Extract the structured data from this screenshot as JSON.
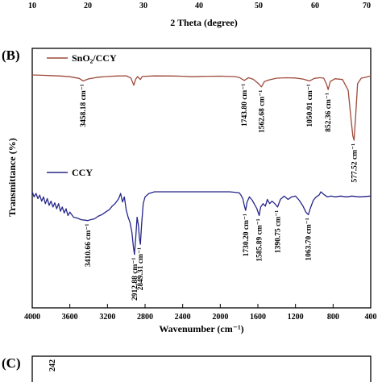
{
  "top_panel": {
    "x_ticks": [
      "10",
      "20",
      "30",
      "40",
      "50",
      "60",
      "70"
    ],
    "xlabel": "2 Theta (degree)"
  },
  "chart_data": {
    "type": "line",
    "panel": "(B)",
    "title": "",
    "xlabel": "Wavenumber (cm⁻¹)",
    "ylabel": "Transmittance (%)",
    "xlim": [
      4000,
      400
    ],
    "x_ticks": [
      "4000",
      "3600",
      "3200",
      "2800",
      "2400",
      "2000",
      "1600",
      "1200",
      "800",
      "400"
    ],
    "grid": false,
    "legend_position": "upper-left of each trace",
    "series": [
      {
        "name": "SnO₂/CCY",
        "color": "#9e4a3c",
        "points": [
          [
            4000,
            0.0
          ],
          [
            3900,
            0.3
          ],
          [
            3800,
            0.6
          ],
          [
            3700,
            1.0
          ],
          [
            3600,
            1.6
          ],
          [
            3500,
            3.2
          ],
          [
            3458.18,
            5.5
          ],
          [
            3400,
            3.6
          ],
          [
            3300,
            2.1
          ],
          [
            3200,
            1.4
          ],
          [
            3100,
            1.0
          ],
          [
            3000,
            0.8
          ],
          [
            2950,
            2.8
          ],
          [
            2920,
            9.5
          ],
          [
            2900,
            4.0
          ],
          [
            2880,
            1.5
          ],
          [
            2850,
            4.2
          ],
          [
            2830,
            1.4
          ],
          [
            2700,
            0.9
          ],
          [
            2500,
            1.0
          ],
          [
            2400,
            1.2
          ],
          [
            2300,
            1.6
          ],
          [
            2200,
            1.3
          ],
          [
            2100,
            1.2
          ],
          [
            2000,
            1.1
          ],
          [
            1850,
            1.5
          ],
          [
            1800,
            2.2
          ],
          [
            1743.8,
            5.0
          ],
          [
            1700,
            2.5
          ],
          [
            1650,
            4.0
          ],
          [
            1600,
            7.5
          ],
          [
            1562.68,
            11.0
          ],
          [
            1530,
            6.0
          ],
          [
            1480,
            4.5
          ],
          [
            1400,
            3.0
          ],
          [
            1300,
            2.6
          ],
          [
            1200,
            2.8
          ],
          [
            1120,
            3.8
          ],
          [
            1050.91,
            5.5
          ],
          [
            1000,
            3.2
          ],
          [
            940,
            2.5
          ],
          [
            900,
            3.0
          ],
          [
            870,
            8.5
          ],
          [
            852.36,
            13.5
          ],
          [
            830,
            6.0
          ],
          [
            780,
            3.5
          ],
          [
            700,
            4.2
          ],
          [
            640,
            14.0
          ],
          [
            610,
            40.0
          ],
          [
            590,
            56.0
          ],
          [
            577.52,
            60.0
          ],
          [
            560,
            38.0
          ],
          [
            540,
            8.0
          ],
          [
            500,
            3.0
          ],
          [
            450,
            2.0
          ],
          [
            400,
            1.0
          ]
        ]
      },
      {
        "name": "CCY",
        "color": "#26268a",
        "points": [
          [
            4000,
            0.0
          ],
          [
            3980,
            6.0
          ],
          [
            3960,
            2.0
          ],
          [
            3940,
            8.0
          ],
          [
            3920,
            4.0
          ],
          [
            3900,
            11.0
          ],
          [
            3880,
            6.0
          ],
          [
            3860,
            14.0
          ],
          [
            3840,
            8.0
          ],
          [
            3820,
            16.0
          ],
          [
            3800,
            11.0
          ],
          [
            3780,
            18.0
          ],
          [
            3760,
            13.0
          ],
          [
            3740,
            20.0
          ],
          [
            3720,
            14.0
          ],
          [
            3700,
            23.0
          ],
          [
            3680,
            18.0
          ],
          [
            3660,
            25.0
          ],
          [
            3640,
            20.0
          ],
          [
            3620,
            28.0
          ],
          [
            3600,
            24.0
          ],
          [
            3560,
            30.0
          ],
          [
            3520,
            31.0
          ],
          [
            3480,
            33.0
          ],
          [
            3440,
            33.5
          ],
          [
            3410.66,
            34.0
          ],
          [
            3380,
            33.0
          ],
          [
            3340,
            32.0
          ],
          [
            3300,
            29.0
          ],
          [
            3260,
            27.0
          ],
          [
            3220,
            24.0
          ],
          [
            3180,
            21.0
          ],
          [
            3150,
            17.0
          ],
          [
            3120,
            14.0
          ],
          [
            3100,
            11.0
          ],
          [
            3080,
            8.0
          ],
          [
            3060,
            2.0
          ],
          [
            3040,
            12.0
          ],
          [
            3020,
            6.0
          ],
          [
            3000,
            22.0
          ],
          [
            2980,
            30.0
          ],
          [
            2960,
            36.0
          ],
          [
            2940,
            48.0
          ],
          [
            2925,
            64.0
          ],
          [
            2912.88,
            74.0
          ],
          [
            2900,
            56.0
          ],
          [
            2885,
            30.0
          ],
          [
            2870,
            40.0
          ],
          [
            2860,
            55.0
          ],
          [
            2849.31,
            62.0
          ],
          [
            2835,
            36.0
          ],
          [
            2820,
            14.0
          ],
          [
            2800,
            6.0
          ],
          [
            2760,
            2.0
          ],
          [
            2700,
            0.0
          ],
          [
            2600,
            0.0
          ],
          [
            2400,
            0.0
          ],
          [
            2200,
            0.0
          ],
          [
            2000,
            0.0
          ],
          [
            1900,
            0.0
          ],
          [
            1800,
            1.0
          ],
          [
            1780,
            4.0
          ],
          [
            1760,
            8.0
          ],
          [
            1745,
            16.0
          ],
          [
            1730.2,
            22.0
          ],
          [
            1715,
            12.0
          ],
          [
            1690,
            6.0
          ],
          [
            1660,
            10.0
          ],
          [
            1630,
            16.0
          ],
          [
            1610,
            20.0
          ],
          [
            1585.89,
            28.0
          ],
          [
            1570,
            18.0
          ],
          [
            1545,
            14.0
          ],
          [
            1520,
            17.0
          ],
          [
            1500,
            9.0
          ],
          [
            1475,
            14.0
          ],
          [
            1450,
            11.0
          ],
          [
            1420,
            14.0
          ],
          [
            1390.75,
            18.0
          ],
          [
            1360,
            9.0
          ],
          [
            1320,
            5.0
          ],
          [
            1280,
            9.0
          ],
          [
            1240,
            6.0
          ],
          [
            1200,
            5.0
          ],
          [
            1160,
            10.0
          ],
          [
            1120,
            17.0
          ],
          [
            1090,
            24.0
          ],
          [
            1063.7,
            27.0
          ],
          [
            1040,
            19.0
          ],
          [
            1010,
            10.0
          ],
          [
            980,
            6.0
          ],
          [
            950,
            4.0
          ],
          [
            930,
            0.0
          ],
          [
            900,
            3.0
          ],
          [
            860,
            6.0
          ],
          [
            820,
            5.0
          ],
          [
            780,
            6.0
          ],
          [
            720,
            5.0
          ],
          [
            660,
            6.0
          ],
          [
            600,
            5.0
          ],
          [
            520,
            6.0
          ],
          [
            460,
            5.5
          ],
          [
            400,
            5.0
          ]
        ]
      }
    ],
    "peak_labels": [
      {
        "series": 0,
        "value": 3458.18,
        "text": "3458.18 cm⁻¹"
      },
      {
        "series": 0,
        "value": 1743.8,
        "text": "1743.80 cm⁻¹"
      },
      {
        "series": 0,
        "value": 1562.68,
        "text": "1562.68 cm⁻¹"
      },
      {
        "series": 0,
        "value": 1050.91,
        "text": "1050.91 cm⁻¹"
      },
      {
        "series": 0,
        "value": 852.36,
        "text": "852.36 cm⁻¹"
      },
      {
        "series": 0,
        "value": 577.52,
        "text": "577.52 cm⁻¹"
      },
      {
        "series": 1,
        "value": 3410.66,
        "text": "3410.66 cm⁻¹"
      },
      {
        "series": 1,
        "value": 2912.88,
        "text": "2912.88 cm⁻¹"
      },
      {
        "series": 1,
        "value": 2849.31,
        "text": "2849.31 cm⁻¹"
      },
      {
        "series": 1,
        "value": 1730.2,
        "text": "1730.20 cm⁻¹"
      },
      {
        "series": 1,
        "value": 1585.89,
        "text": "1585.89 cm⁻¹"
      },
      {
        "series": 1,
        "value": 1390.75,
        "text": "1390.75 cm⁻¹"
      },
      {
        "series": 1,
        "value": 1063.7,
        "text": "1063.70 cm⁻¹"
      }
    ]
  },
  "bottom_panel": {
    "panel": "(C)",
    "peak_label": "242"
  }
}
